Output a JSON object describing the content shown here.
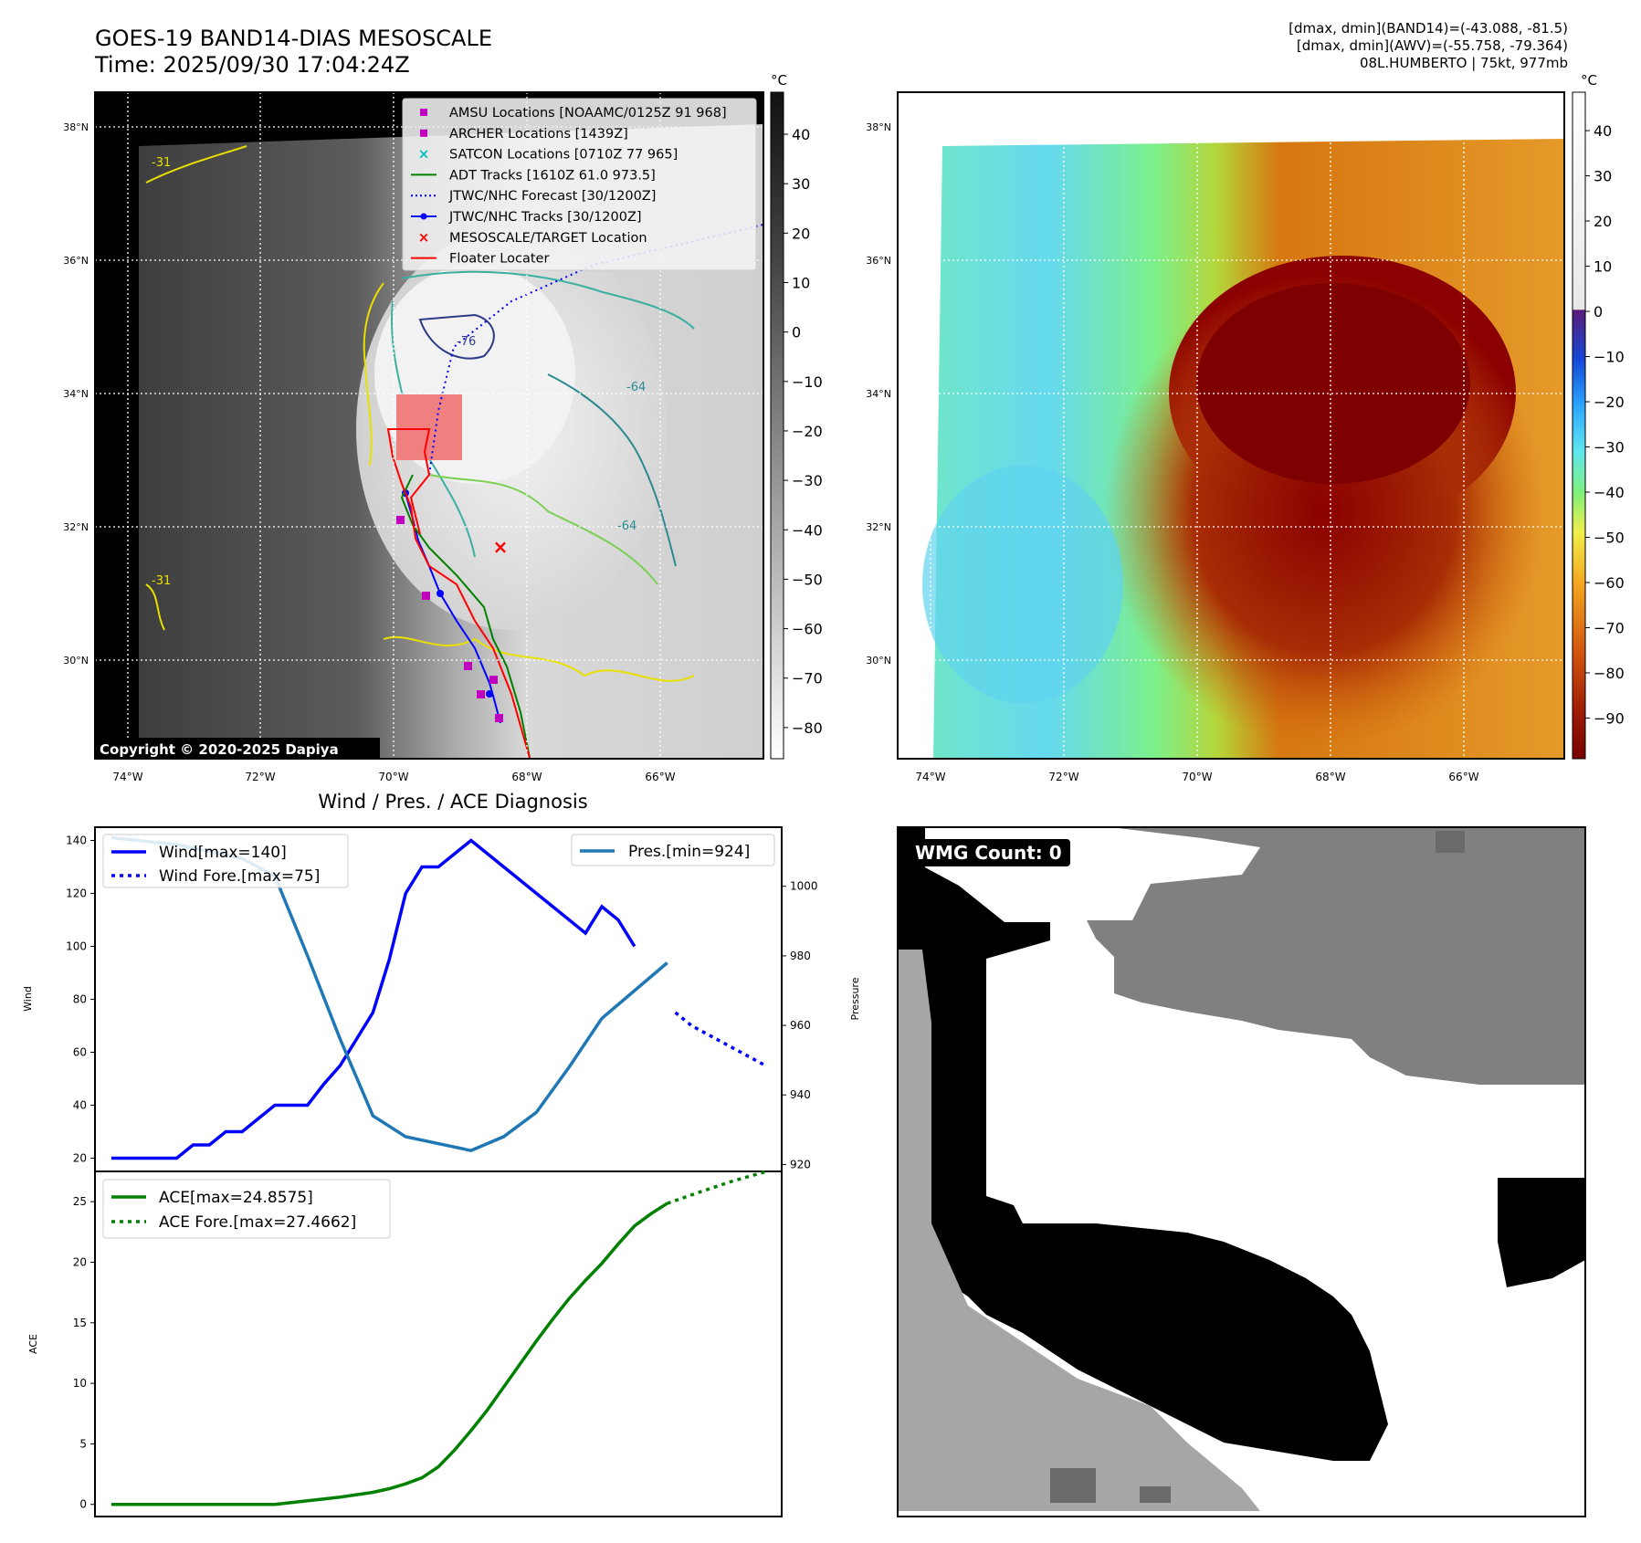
{
  "header": {
    "title_line1": "GOES-19 BAND14-DIAS MESOSCALE",
    "title_line2": "Time: 2025/09/30 17:04:24Z",
    "info_line1": "[dmax, dmin](BAND14)=(-43.088, -81.5)",
    "info_line2": "[dmax, dmin](AWV)=(-55.758, -79.364)",
    "info_line3": "08L.HUMBERTO | 75kt, 977mb"
  },
  "map_axes": {
    "lon_labels": [
      "74°W",
      "72°W",
      "70°W",
      "68°W",
      "66°W"
    ],
    "lat_labels": [
      "38°N",
      "36°N",
      "34°N",
      "32°N",
      "30°N"
    ],
    "lon_range": [
      -74.5,
      -64.5
    ],
    "lat_range": [
      28.7,
      38.7
    ]
  },
  "colorbars": {
    "unit": "°C",
    "band14_ticks": [
      40,
      30,
      20,
      10,
      0,
      -10,
      -20,
      -30,
      -40,
      -50,
      -60,
      -70,
      -80
    ],
    "awv_ticks": [
      40,
      30,
      20,
      10,
      0,
      -10,
      -20,
      -30,
      -40,
      -50,
      -60,
      -70,
      -80,
      -90
    ]
  },
  "copyright": "Copyright © 2020-2025 Dapiya",
  "legend_map": [
    {
      "label": "AMSU Locations [NOAAMC/0125Z 91 968]",
      "color": "#bf00bf",
      "marker": "square"
    },
    {
      "label": "ARCHER Locations [1439Z]",
      "color": "#bf00bf",
      "marker": "square"
    },
    {
      "label": "SATCON Locations [0710Z 77 965]",
      "color": "#00bfbf",
      "marker": "x"
    },
    {
      "label": "ADT Tracks [1610Z 61.0 973.5]",
      "color": "#008000",
      "marker": "line"
    },
    {
      "label": "JTWC/NHC Forecast [30/1200Z]",
      "color": "#0000ff",
      "marker": "dotted"
    },
    {
      "label": "JTWC/NHC Tracks [30/1200Z]",
      "color": "#0000ff",
      "marker": "line-dot"
    },
    {
      "label": "MESOSCALE/TARGET Location",
      "color": "#ff0000",
      "marker": "x"
    },
    {
      "label": "Floater Locater",
      "color": "#ff0000",
      "marker": "line"
    }
  ],
  "map_contour_labels": [
    "-31",
    "-64",
    "-64",
    "-31",
    "-76"
  ],
  "chart_data": [
    {
      "type": "line",
      "title": "Wind / Pres. / ACE Diagnosis",
      "ylabel": "Wind",
      "ylabel_right": "Pressure",
      "ylim": [
        15,
        145
      ],
      "ylim_right": [
        918,
        1017
      ],
      "yticks": [
        20,
        40,
        60,
        80,
        100,
        120,
        140
      ],
      "yticks_right": [
        920,
        940,
        960,
        980,
        1000
      ],
      "series": [
        {
          "name": "Wind[max=140]",
          "color": "#0000ff",
          "style": "solid",
          "x": [
            0,
            1,
            2,
            3,
            4,
            5,
            6,
            7,
            8,
            9,
            10,
            11,
            12,
            13,
            14,
            15,
            16,
            17,
            18,
            19,
            20,
            21,
            22,
            23,
            24,
            25,
            26,
            27,
            28,
            29,
            30,
            31,
            32
          ],
          "values": [
            20,
            20,
            20,
            20,
            20,
            25,
            25,
            30,
            30,
            35,
            40,
            40,
            40,
            48,
            55,
            65,
            75,
            95,
            120,
            130,
            130,
            135,
            140,
            135,
            130,
            125,
            120,
            115,
            110,
            105,
            115,
            110,
            100
          ]
        },
        {
          "name": "Wind Fore.[max=75]",
          "color": "#0000ff",
          "style": "dotted",
          "x": [
            34.5,
            35.5,
            37,
            38.5,
            40
          ],
          "values": [
            75,
            70,
            65,
            60,
            55
          ]
        },
        {
          "name": "Pres.[min=924]",
          "color": "#1f77b4",
          "style": "solid",
          "x": [
            0,
            2,
            4,
            6,
            8,
            10,
            12,
            14,
            16,
            18,
            20,
            22,
            24,
            26,
            28,
            30,
            32,
            34
          ],
          "values": [
            1014,
            1013,
            1012,
            1010,
            1008,
            1003,
            980,
            956,
            934,
            928,
            926,
            924,
            928,
            935,
            948,
            962,
            970,
            978
          ]
        }
      ],
      "x_range": [
        -1,
        41
      ]
    },
    {
      "type": "line",
      "title": "",
      "ylabel": "ACE",
      "ylim": [
        -1,
        27.5
      ],
      "yticks": [
        0,
        5,
        10,
        15,
        20,
        25
      ],
      "series": [
        {
          "name": "ACE[max=24.8575]",
          "color": "#008000",
          "style": "solid",
          "x": [
            0,
            4,
            8,
            10,
            12,
            14,
            15,
            16,
            17,
            18,
            19,
            20,
            21,
            22,
            23,
            24,
            25,
            26,
            27,
            28,
            29,
            30,
            31,
            32,
            33,
            34
          ],
          "values": [
            0,
            0,
            0,
            0,
            0.3,
            0.6,
            0.8,
            1.0,
            1.3,
            1.7,
            2.2,
            3.1,
            4.5,
            6.1,
            7.8,
            9.7,
            11.6,
            13.5,
            15.3,
            17.0,
            18.5,
            19.9,
            21.5,
            23.0,
            24.0,
            24.8575
          ]
        },
        {
          "name": "ACE Fore.[max=27.4662]",
          "color": "#008000",
          "style": "dotted",
          "x": [
            34,
            36,
            38,
            40
          ],
          "values": [
            24.8575,
            25.8,
            26.7,
            27.4662
          ]
        }
      ],
      "x_range": [
        -1,
        41
      ]
    }
  ],
  "wmg": {
    "label": "WMG Count: 0"
  }
}
